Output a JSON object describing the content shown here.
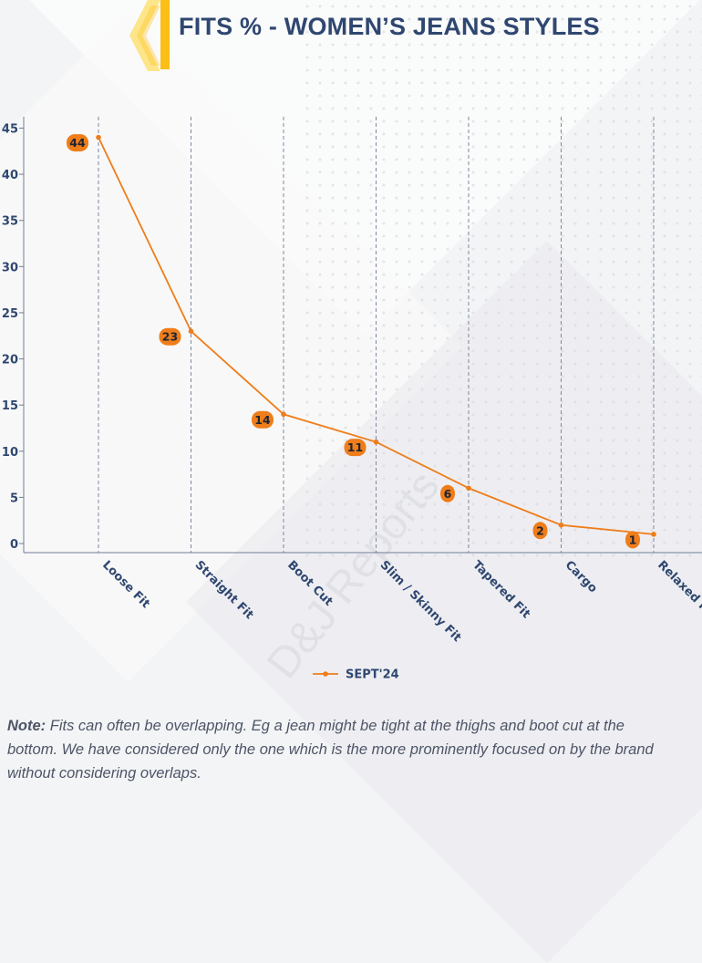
{
  "header": {
    "title": "FITS % - WOMEN’S JEANS STYLES"
  },
  "colors": {
    "accent": "#fbbf16",
    "line": "#ef7d1a",
    "title": "#2f4770",
    "grid": "#6f7d96"
  },
  "chart_data": {
    "type": "line",
    "categories": [
      "Loose Fit",
      "Straight Fit",
      "Boot Cut",
      "Slim / Skinny Fit",
      "Tapered Fit",
      "Cargo",
      "Relaxed Fit"
    ],
    "series": [
      {
        "name": "SEPT'24",
        "values": [
          44,
          23,
          14,
          11,
          6,
          2,
          1
        ]
      }
    ],
    "yticks": [
      "0",
      "5",
      "10",
      "15",
      "20",
      "25",
      "30",
      "35",
      "40",
      "45"
    ],
    "ylim": [
      0,
      45
    ],
    "legend_position": "bottom"
  },
  "watermark": "D&J Reports",
  "note": {
    "label": "Note:",
    "lines": [
      " Fits can often be overlapping. Eg a jean might be tight at the thighs and boot cut at the",
      "bottom. We have considered only the one which is the more prominently focused on by the brand",
      "without considering overlaps."
    ]
  }
}
